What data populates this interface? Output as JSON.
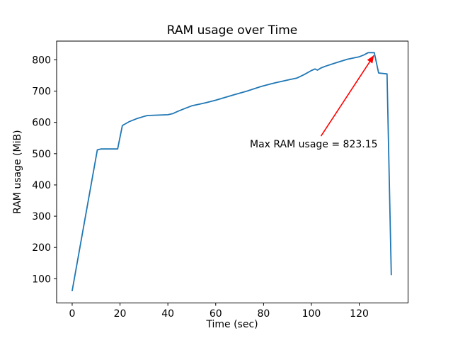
{
  "figure": {
    "background": "#ffffff",
    "title": "RAM usage over Time"
  },
  "chart_data": {
    "type": "line",
    "title": "RAM usage over Time",
    "xlabel": "Time (sec)",
    "ylabel": "RAM usage (MiB)",
    "xlim": [
      -6.5,
      140.4
    ],
    "ylim": [
      22.5,
      860
    ],
    "xticks": [
      0,
      20,
      40,
      60,
      80,
      100,
      120
    ],
    "yticks": [
      100,
      200,
      300,
      400,
      500,
      600,
      700,
      800
    ],
    "grid": false,
    "legend": null,
    "series": [
      {
        "name": "RAM usage",
        "color": "#1f77b4",
        "points": [
          [
            0,
            62
          ],
          [
            10.5,
            512
          ],
          [
            12,
            515
          ],
          [
            19,
            515
          ],
          [
            21,
            590
          ],
          [
            24,
            603
          ],
          [
            27,
            612
          ],
          [
            30,
            619
          ],
          [
            31.5,
            622
          ],
          [
            40,
            624.5
          ],
          [
            42,
            628
          ],
          [
            44,
            635
          ],
          [
            46,
            641
          ],
          [
            50,
            653
          ],
          [
            53,
            658
          ],
          [
            56,
            663
          ],
          [
            60,
            671
          ],
          [
            64,
            680
          ],
          [
            68,
            689
          ],
          [
            73,
            700
          ],
          [
            79,
            715
          ],
          [
            85,
            727
          ],
          [
            91,
            737
          ],
          [
            94,
            742
          ],
          [
            97,
            753
          ],
          [
            100,
            766
          ],
          [
            101.5,
            771
          ],
          [
            102.5,
            767
          ],
          [
            104,
            774
          ],
          [
            106,
            780
          ],
          [
            110,
            790
          ],
          [
            115,
            802
          ],
          [
            120,
            810
          ],
          [
            122,
            816
          ],
          [
            123.7,
            823.15
          ],
          [
            126.3,
            823.15
          ],
          [
            128.1,
            758
          ],
          [
            131.6,
            755
          ],
          [
            133.4,
            113
          ]
        ]
      }
    ],
    "max_value": 823.15,
    "annotation": {
      "text": "Max RAM usage = 823.15",
      "color": "#ff0000",
      "text_xy": [
        74.3,
        517
      ],
      "arrow_tail_xy": [
        104,
        556
      ],
      "arrow_tip_xy": [
        126.1,
        814
      ]
    },
    "colors": {
      "line": "#1f77b4",
      "annotation": "#ff0000",
      "spine": "#000000",
      "text": "#000000"
    }
  }
}
